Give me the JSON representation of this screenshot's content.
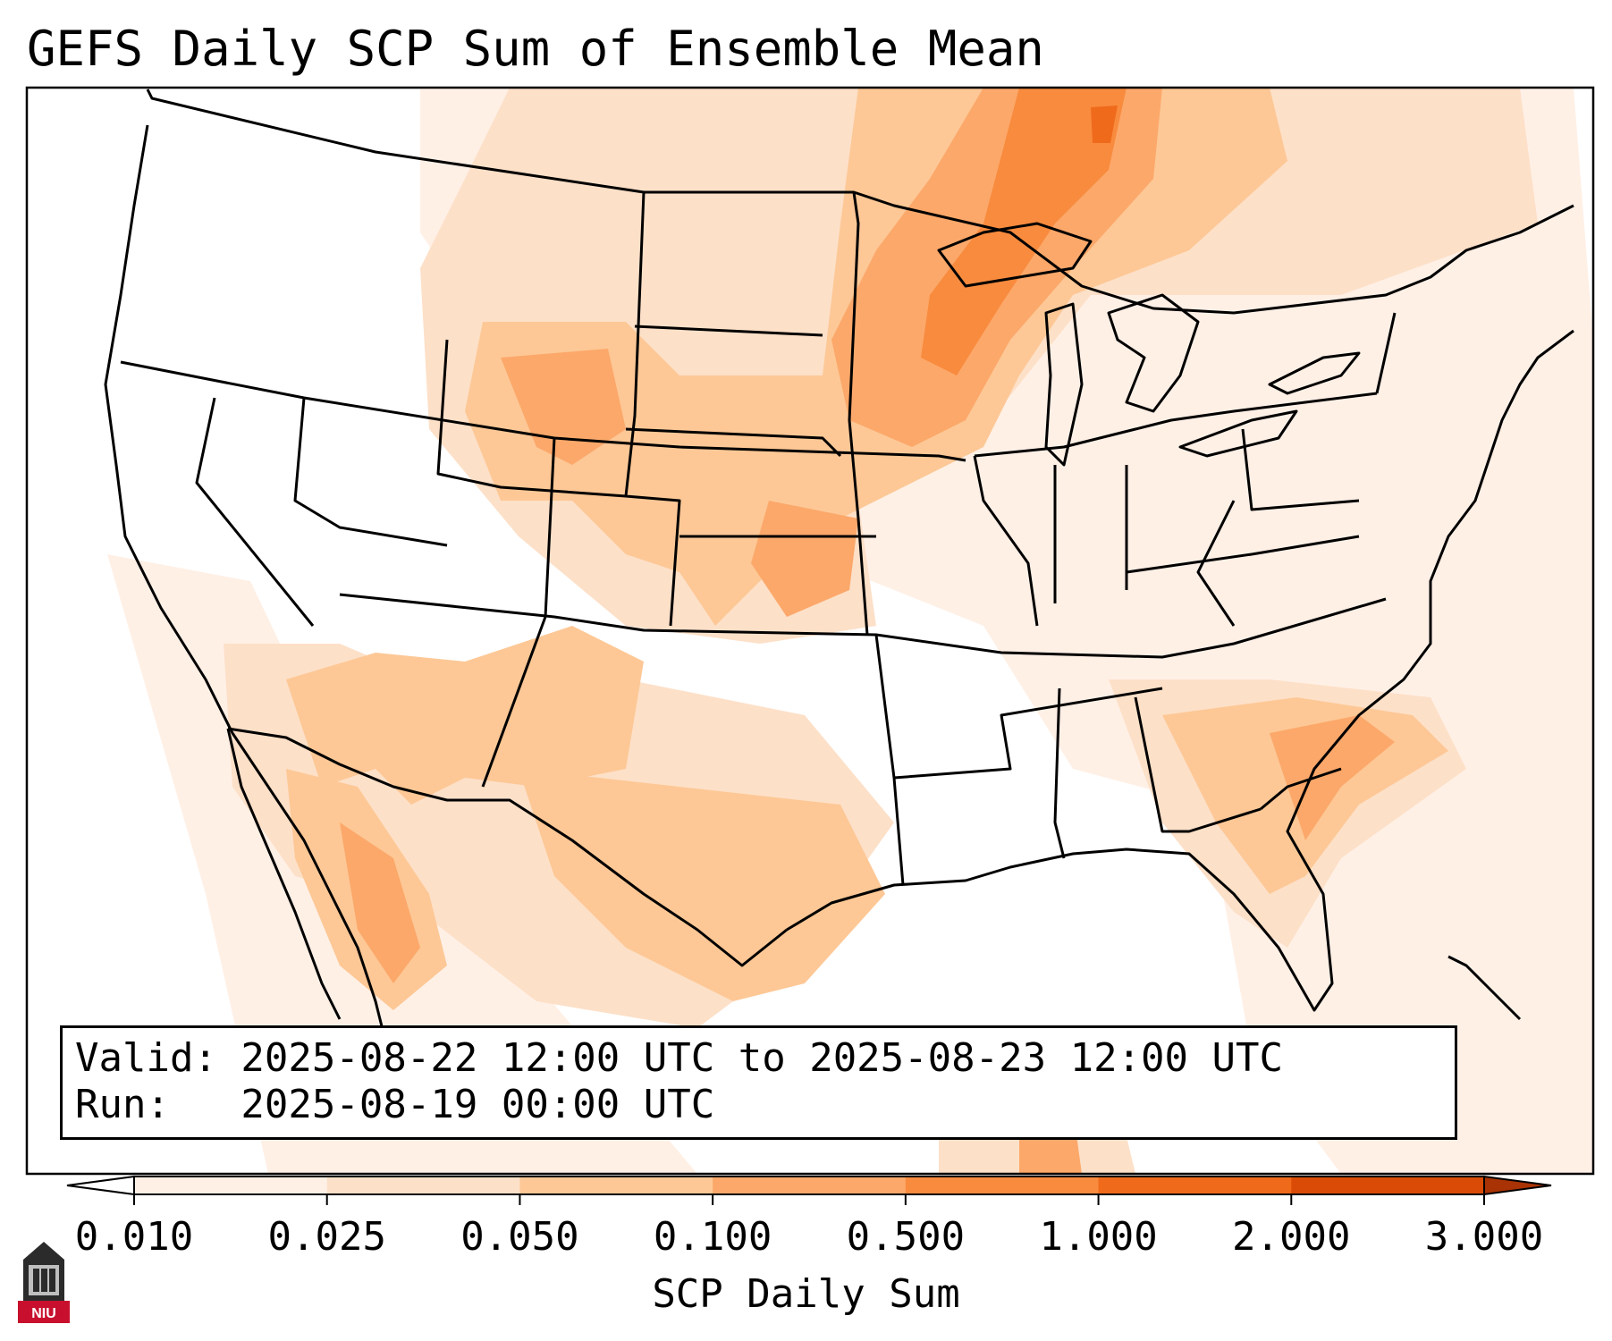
{
  "title": "GEFS Daily SCP Sum of Ensemble Mean",
  "info": {
    "valid_line": "Valid: 2025-08-22 12:00 UTC to 2025-08-23 12:00 UTC",
    "run_line": "Run:   2025-08-19 00:00 UTC"
  },
  "colorbar": {
    "label": "SCP Daily Sum",
    "ticks": [
      "0.010",
      "0.025",
      "0.050",
      "0.100",
      "0.500",
      "1.000",
      "2.000",
      "3.000"
    ],
    "colors": [
      "#fff0e6",
      "#fde0c8",
      "#fdc896",
      "#fca86a",
      "#f88b3e",
      "#f06a1c",
      "#d94b07"
    ],
    "under_color": "#ffffff",
    "over_color": "#a93304",
    "extend": "both"
  },
  "logo": {
    "text": "NIU",
    "color": "#c8102e"
  },
  "map": {
    "projection": "conic",
    "region": "CONUS and surrounding areas",
    "boundaries": [
      "coastlines",
      "states",
      "countries"
    ]
  }
}
